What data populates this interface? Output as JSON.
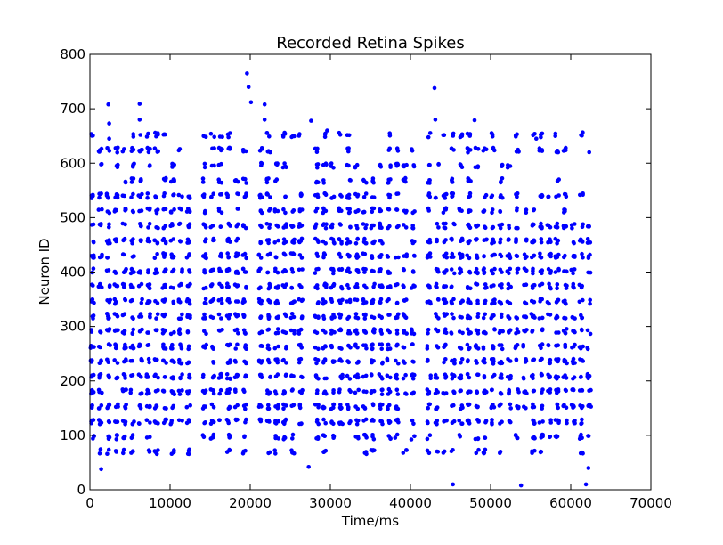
{
  "chart_data": {
    "type": "scatter",
    "title": "Recorded Retina Spikes",
    "xlabel": "Time/ms",
    "ylabel": "Neuron ID",
    "xlim": [
      0,
      70000
    ],
    "ylim": [
      0,
      800
    ],
    "xticks": [
      0,
      10000,
      20000,
      30000,
      40000,
      50000,
      60000,
      70000
    ],
    "yticks": [
      0,
      100,
      200,
      300,
      400,
      500,
      600,
      700,
      800
    ],
    "xtick_labels": [
      "0",
      "10000",
      "20000",
      "30000",
      "40000",
      "50000",
      "60000",
      "70000"
    ],
    "ytick_labels": [
      "0",
      "100",
      "200",
      "300",
      "400",
      "500",
      "600",
      "700",
      "800"
    ],
    "grid": false,
    "legend": "none",
    "marker_color": "#0000ff",
    "series": [
      {
        "description_rows": "Neuron rows (neuron IDs) that fire regularly throughout the recording",
        "neuron_rows": [
          70,
          97,
          125,
          153,
          180,
          208,
          236,
          263,
          291,
          319,
          346,
          374,
          402,
          430,
          457,
          485,
          513,
          540,
          568,
          596,
          624,
          652
        ],
        "time_range": [
          0,
          63000
        ]
      }
    ],
    "approx_points": [
      [
        2300,
        708
      ],
      [
        2400,
        673
      ],
      [
        2400,
        645
      ],
      [
        6200,
        709
      ],
      [
        6200,
        680
      ],
      [
        6300,
        652
      ],
      [
        19600,
        765
      ],
      [
        19800,
        740
      ],
      [
        20100,
        712
      ],
      [
        21800,
        708
      ],
      [
        21800,
        680
      ],
      [
        27600,
        678
      ],
      [
        29600,
        660
      ],
      [
        43000,
        738
      ],
      [
        43100,
        680
      ],
      [
        48000,
        679
      ],
      [
        1400,
        38
      ],
      [
        10200,
        66
      ],
      [
        27300,
        42
      ],
      [
        45300,
        10
      ],
      [
        53800,
        8
      ],
      [
        61900,
        10
      ],
      [
        62200,
        40
      ],
      [
        55700,
        645
      ],
      [
        62300,
        620
      ]
    ]
  }
}
